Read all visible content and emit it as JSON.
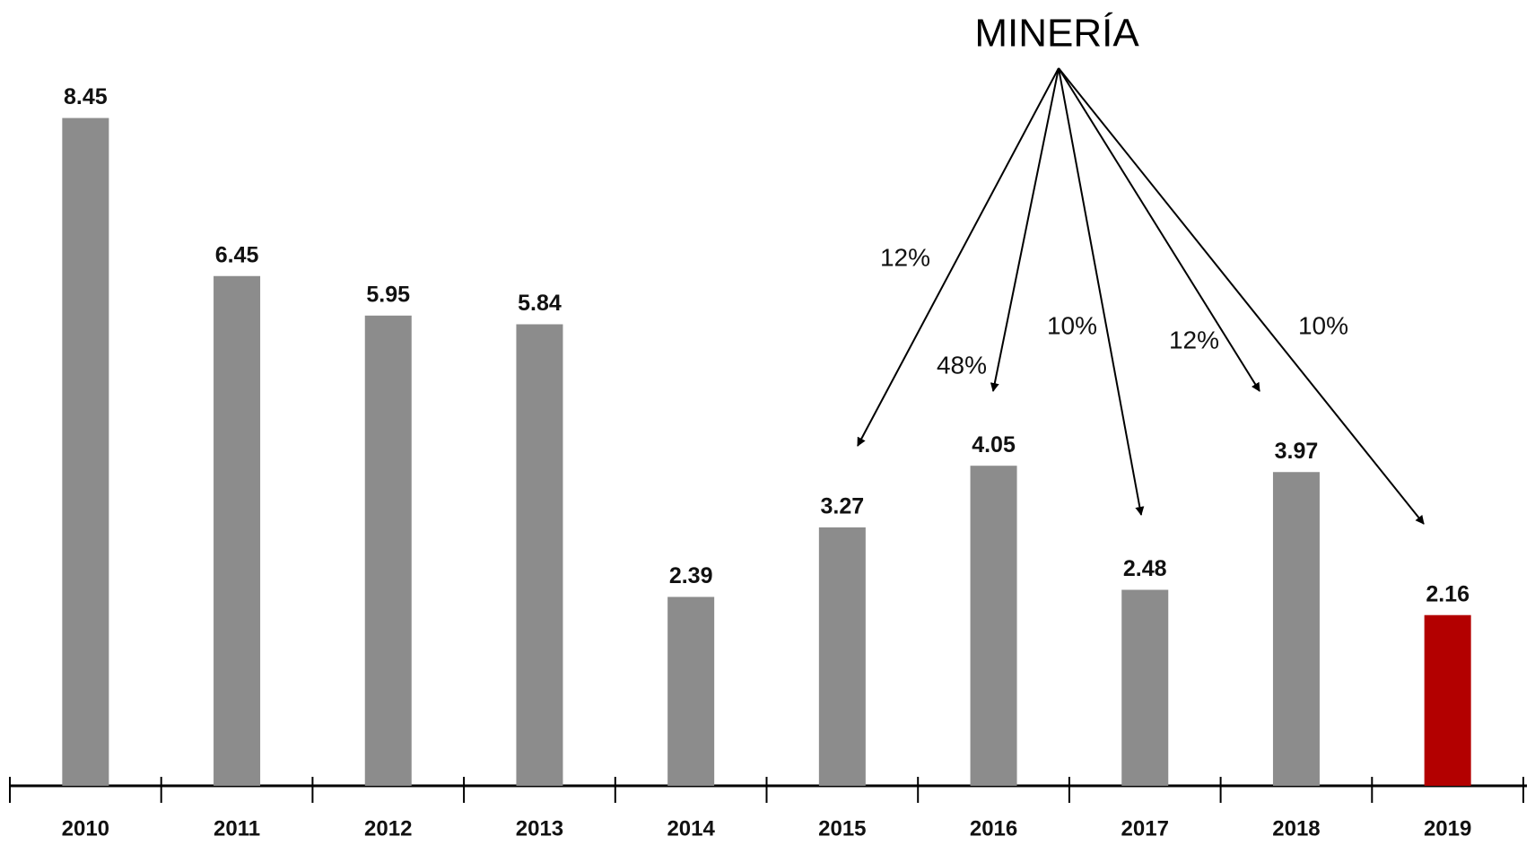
{
  "chart_data": {
    "type": "bar",
    "categories": [
      "2010",
      "2011",
      "2012",
      "2013",
      "2014",
      "2015",
      "2016",
      "2017",
      "2018",
      "2019"
    ],
    "values": [
      8.45,
      6.45,
      5.95,
      5.84,
      2.39,
      3.27,
      4.05,
      2.48,
      3.97,
      2.16
    ],
    "colors": [
      "#8c8c8c",
      "#8c8c8c",
      "#8c8c8c",
      "#8c8c8c",
      "#8c8c8c",
      "#8c8c8c",
      "#8c8c8c",
      "#8c8c8c",
      "#8c8c8c",
      "#b30000"
    ],
    "annotation": {
      "title": "MINERÍA",
      "labels": [
        "12%",
        "48%",
        "10%",
        "12%",
        "10%"
      ]
    }
  }
}
